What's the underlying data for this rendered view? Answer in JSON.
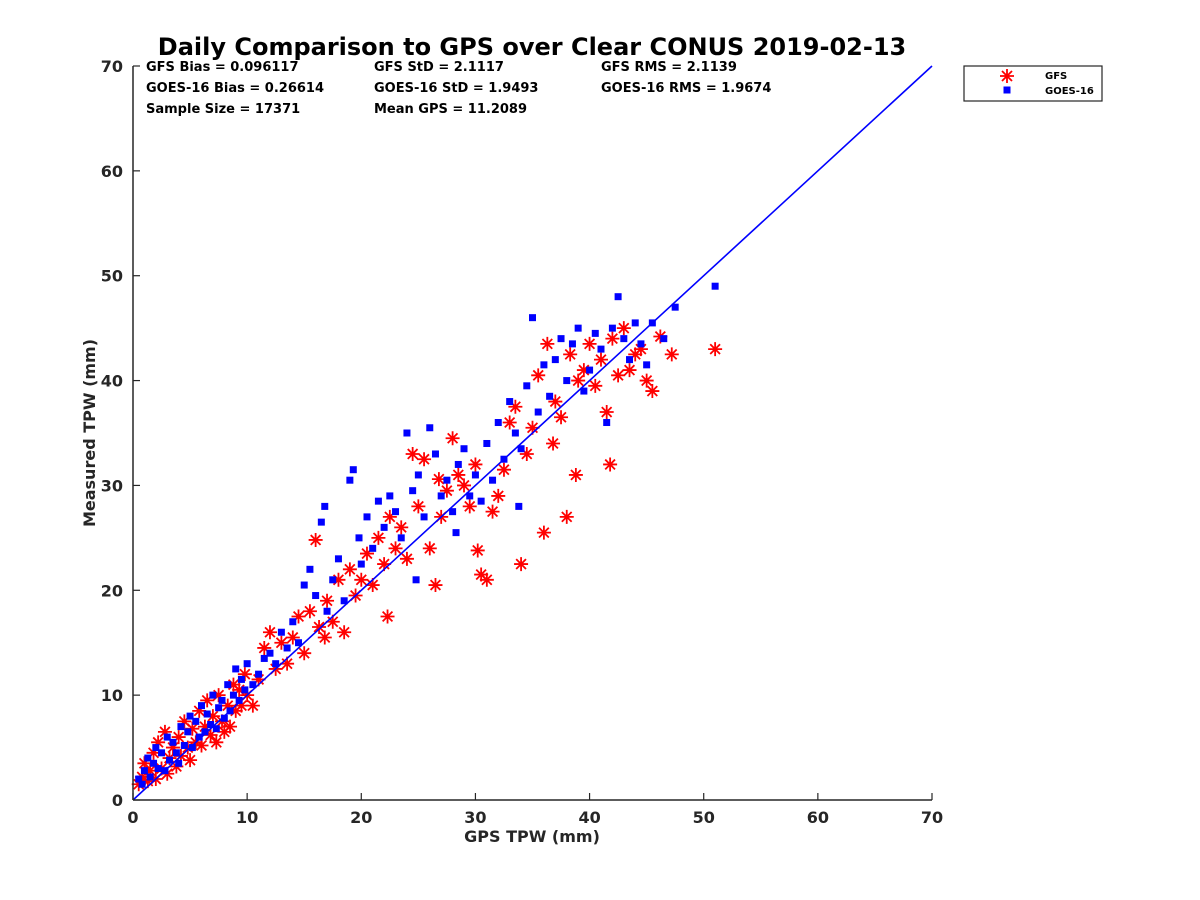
{
  "chart_data": {
    "type": "scatter",
    "title": "Daily Comparison to GPS over Clear CONUS 2019-02-13",
    "xlabel": "GPS TPW (mm)",
    "ylabel": "Measured TPW (mm)",
    "xlim": [
      0,
      70
    ],
    "ylim": [
      0,
      70
    ],
    "xticks": [
      "0",
      "10",
      "20",
      "30",
      "40",
      "50",
      "60",
      "70"
    ],
    "yticks": [
      "0",
      "10",
      "20",
      "30",
      "40",
      "50",
      "60",
      "70"
    ],
    "legend_position": "outside-top-right",
    "stats": [
      [
        "GFS Bias = 0.096117",
        "GFS StD = 2.1117",
        "GFS RMS = 2.1139"
      ],
      [
        "GOES-16 Bias = 0.26614",
        "GOES-16 StD = 1.9493",
        "GOES-16 RMS = 1.9674"
      ],
      [
        "Sample Size = 17371",
        "Mean GPS = 11.2089"
      ]
    ],
    "one_to_one_line": {
      "color": "#0000ff",
      "from": [
        0,
        0
      ],
      "to": [
        70,
        70
      ]
    },
    "series": [
      {
        "name": "GFS",
        "marker": "asterisk",
        "color": "#ff0000",
        "points": [
          [
            0.5,
            1.5
          ],
          [
            0.8,
            2.2
          ],
          [
            1.0,
            3.5
          ],
          [
            1.3,
            1.8
          ],
          [
            1.5,
            2.8
          ],
          [
            1.8,
            4.5
          ],
          [
            2.0,
            2.0
          ],
          [
            2.2,
            5.5
          ],
          [
            2.5,
            3.0
          ],
          [
            2.8,
            6.5
          ],
          [
            3.0,
            2.5
          ],
          [
            3.2,
            4.0
          ],
          [
            3.5,
            5.0
          ],
          [
            3.8,
            3.2
          ],
          [
            4.0,
            6.0
          ],
          [
            4.2,
            4.2
          ],
          [
            4.5,
            7.5
          ],
          [
            4.8,
            5.0
          ],
          [
            5.0,
            3.8
          ],
          [
            5.2,
            6.8
          ],
          [
            5.5,
            5.5
          ],
          [
            5.8,
            8.5
          ],
          [
            6.0,
            5.2
          ],
          [
            6.3,
            7.0
          ],
          [
            6.5,
            9.5
          ],
          [
            6.8,
            6.2
          ],
          [
            7.0,
            8.0
          ],
          [
            7.3,
            5.5
          ],
          [
            7.5,
            10.0
          ],
          [
            7.8,
            7.5
          ],
          [
            8.0,
            6.5
          ],
          [
            8.3,
            9.0
          ],
          [
            8.5,
            7.0
          ],
          [
            8.8,
            11.0
          ],
          [
            9.0,
            8.5
          ],
          [
            9.3,
            10.5
          ],
          [
            9.5,
            9.0
          ],
          [
            9.8,
            12.0
          ],
          [
            10.0,
            10.0
          ],
          [
            10.5,
            9.0
          ],
          [
            11.0,
            11.5
          ],
          [
            11.5,
            14.5
          ],
          [
            12.0,
            16.0
          ],
          [
            12.5,
            12.5
          ],
          [
            13.0,
            15.0
          ],
          [
            13.5,
            13.0
          ],
          [
            14.0,
            15.5
          ],
          [
            14.5,
            17.5
          ],
          [
            15.0,
            14.0
          ],
          [
            15.5,
            18.0
          ],
          [
            16.0,
            24.8
          ],
          [
            16.3,
            16.5
          ],
          [
            16.8,
            15.5
          ],
          [
            17.0,
            19.0
          ],
          [
            17.5,
            17.0
          ],
          [
            18.0,
            21.0
          ],
          [
            18.5,
            16.0
          ],
          [
            19.0,
            22.0
          ],
          [
            19.5,
            19.5
          ],
          [
            20.0,
            21.0
          ],
          [
            20.5,
            23.5
          ],
          [
            21.0,
            20.5
          ],
          [
            21.5,
            25.0
          ],
          [
            22.0,
            22.5
          ],
          [
            22.5,
            27.0
          ],
          [
            23.0,
            24.0
          ],
          [
            23.5,
            26.0
          ],
          [
            24.0,
            23.0
          ],
          [
            24.5,
            33.0
          ],
          [
            25.0,
            28.0
          ],
          [
            25.5,
            32.5
          ],
          [
            26.0,
            24.0
          ],
          [
            26.5,
            20.5
          ],
          [
            27.0,
            27.0
          ],
          [
            27.5,
            29.5
          ],
          [
            28.0,
            34.5
          ],
          [
            28.5,
            31.0
          ],
          [
            29.0,
            30.0
          ],
          [
            29.5,
            28.0
          ],
          [
            30.0,
            32.0
          ],
          [
            30.5,
            21.5
          ],
          [
            31.0,
            21.0
          ],
          [
            31.5,
            27.5
          ],
          [
            32.0,
            29.0
          ],
          [
            32.5,
            31.5
          ],
          [
            33.0,
            36.0
          ],
          [
            33.5,
            37.5
          ],
          [
            34.0,
            22.5
          ],
          [
            34.5,
            33.0
          ],
          [
            35.0,
            35.5
          ],
          [
            35.5,
            40.5
          ],
          [
            36.0,
            25.5
          ],
          [
            36.3,
            43.5
          ],
          [
            36.8,
            34.0
          ],
          [
            37.0,
            38.0
          ],
          [
            37.5,
            36.5
          ],
          [
            38.0,
            27.0
          ],
          [
            38.3,
            42.5
          ],
          [
            38.8,
            31.0
          ],
          [
            39.0,
            40.0
          ],
          [
            39.5,
            41.0
          ],
          [
            40.0,
            43.5
          ],
          [
            40.5,
            39.5
          ],
          [
            41.0,
            42.0
          ],
          [
            41.5,
            37.0
          ],
          [
            41.8,
            32.0
          ],
          [
            42.0,
            44.0
          ],
          [
            42.5,
            40.5
          ],
          [
            43.0,
            45.0
          ],
          [
            43.5,
            41.0
          ],
          [
            44.0,
            42.5
          ],
          [
            44.5,
            43.0
          ],
          [
            45.0,
            40.0
          ],
          [
            45.5,
            39.0
          ],
          [
            46.2,
            44.2
          ],
          [
            47.2,
            42.5
          ],
          [
            51.0,
            43.0
          ],
          [
            22.3,
            17.5
          ],
          [
            30.2,
            23.8
          ],
          [
            26.8,
            30.6
          ]
        ]
      },
      {
        "name": "GOES-16",
        "marker": "square",
        "color": "#0000ff",
        "points": [
          [
            0.5,
            2.0
          ],
          [
            0.8,
            1.5
          ],
          [
            1.0,
            2.8
          ],
          [
            1.3,
            4.0
          ],
          [
            1.5,
            2.2
          ],
          [
            1.8,
            3.5
          ],
          [
            2.0,
            5.0
          ],
          [
            2.2,
            3.0
          ],
          [
            2.5,
            4.5
          ],
          [
            2.8,
            2.8
          ],
          [
            3.0,
            6.0
          ],
          [
            3.2,
            3.8
          ],
          [
            3.5,
            5.5
          ],
          [
            3.8,
            4.5
          ],
          [
            4.0,
            3.5
          ],
          [
            4.2,
            7.0
          ],
          [
            4.5,
            5.2
          ],
          [
            4.8,
            6.5
          ],
          [
            5.0,
            8.0
          ],
          [
            5.2,
            5.0
          ],
          [
            5.5,
            7.5
          ],
          [
            5.8,
            6.0
          ],
          [
            6.0,
            9.0
          ],
          [
            6.3,
            6.5
          ],
          [
            6.5,
            8.2
          ],
          [
            6.8,
            7.2
          ],
          [
            7.0,
            10.0
          ],
          [
            7.3,
            6.8
          ],
          [
            7.5,
            8.8
          ],
          [
            7.8,
            9.5
          ],
          [
            8.0,
            7.8
          ],
          [
            8.3,
            11.0
          ],
          [
            8.5,
            8.5
          ],
          [
            8.8,
            10.0
          ],
          [
            9.0,
            12.5
          ],
          [
            9.3,
            9.5
          ],
          [
            9.5,
            11.5
          ],
          [
            9.8,
            10.5
          ],
          [
            10.0,
            13.0
          ],
          [
            10.5,
            11.0
          ],
          [
            11.0,
            12.0
          ],
          [
            11.5,
            13.5
          ],
          [
            12.0,
            14.0
          ],
          [
            12.5,
            13.0
          ],
          [
            13.0,
            16.0
          ],
          [
            13.5,
            14.5
          ],
          [
            14.0,
            17.0
          ],
          [
            14.5,
            15.0
          ],
          [
            15.0,
            20.5
          ],
          [
            15.5,
            22.0
          ],
          [
            16.0,
            19.5
          ],
          [
            16.5,
            26.5
          ],
          [
            16.8,
            28.0
          ],
          [
            17.0,
            18.0
          ],
          [
            17.5,
            21.0
          ],
          [
            18.0,
            23.0
          ],
          [
            18.5,
            19.0
          ],
          [
            19.0,
            30.5
          ],
          [
            19.3,
            31.5
          ],
          [
            19.8,
            25.0
          ],
          [
            20.0,
            22.5
          ],
          [
            20.5,
            27.0
          ],
          [
            21.0,
            24.0
          ],
          [
            21.5,
            28.5
          ],
          [
            22.0,
            26.0
          ],
          [
            22.5,
            29.0
          ],
          [
            23.0,
            27.5
          ],
          [
            23.5,
            25.0
          ],
          [
            24.0,
            35.0
          ],
          [
            24.5,
            29.5
          ],
          [
            25.0,
            31.0
          ],
          [
            25.5,
            27.0
          ],
          [
            26.0,
            35.5
          ],
          [
            26.5,
            33.0
          ],
          [
            27.0,
            29.0
          ],
          [
            27.5,
            30.5
          ],
          [
            28.0,
            27.5
          ],
          [
            28.5,
            32.0
          ],
          [
            29.0,
            33.5
          ],
          [
            29.5,
            29.0
          ],
          [
            30.0,
            31.0
          ],
          [
            30.5,
            28.5
          ],
          [
            31.0,
            34.0
          ],
          [
            31.5,
            30.5
          ],
          [
            32.0,
            36.0
          ],
          [
            32.5,
            32.5
          ],
          [
            33.0,
            38.0
          ],
          [
            33.5,
            35.0
          ],
          [
            34.0,
            33.5
          ],
          [
            34.5,
            39.5
          ],
          [
            35.0,
            46.0
          ],
          [
            35.5,
            37.0
          ],
          [
            36.0,
            41.5
          ],
          [
            36.5,
            38.5
          ],
          [
            37.0,
            42.0
          ],
          [
            37.5,
            44.0
          ],
          [
            38.0,
            40.0
          ],
          [
            38.5,
            43.5
          ],
          [
            39.0,
            45.0
          ],
          [
            39.5,
            39.0
          ],
          [
            40.0,
            41.0
          ],
          [
            40.5,
            44.5
          ],
          [
            41.0,
            43.0
          ],
          [
            41.5,
            36.0
          ],
          [
            42.0,
            45.0
          ],
          [
            42.5,
            48.0
          ],
          [
            43.0,
            44.0
          ],
          [
            43.5,
            42.0
          ],
          [
            44.0,
            45.5
          ],
          [
            44.5,
            43.5
          ],
          [
            45.0,
            41.5
          ],
          [
            45.5,
            45.5
          ],
          [
            46.5,
            44.0
          ],
          [
            47.5,
            47.0
          ],
          [
            51.0,
            49.0
          ],
          [
            28.3,
            25.5
          ],
          [
            33.8,
            28.0
          ],
          [
            24.8,
            21.0
          ]
        ]
      }
    ]
  }
}
